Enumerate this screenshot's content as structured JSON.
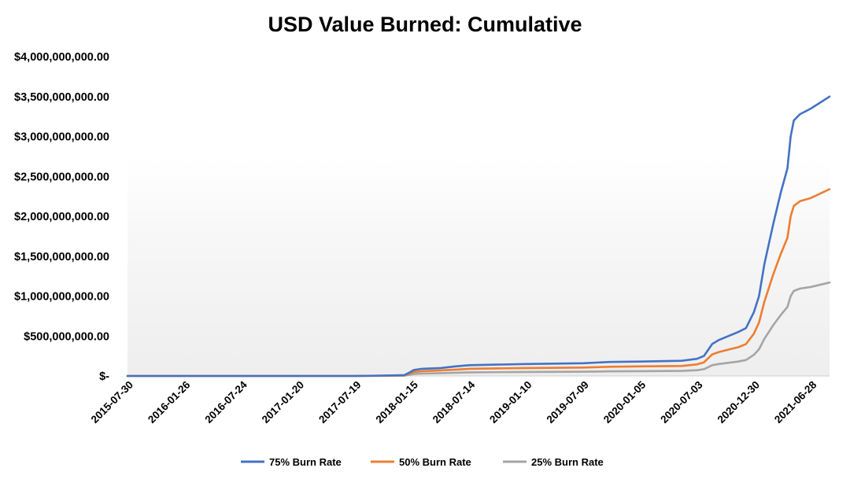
{
  "chart_data": {
    "type": "line",
    "title": "USD Value Burned: Cumulative",
    "xlabel": "",
    "ylabel": "",
    "ylim": [
      0,
      4000000000
    ],
    "y_ticks": [
      {
        "value": 0,
        "label": "$-"
      },
      {
        "value": 500000000,
        "label": "$500,000,000.00"
      },
      {
        "value": 1000000000,
        "label": "$1,000,000,000.00"
      },
      {
        "value": 1500000000,
        "label": "$1,500,000,000.00"
      },
      {
        "value": 2000000000,
        "label": "$2,000,000,000.00"
      },
      {
        "value": 2500000000,
        "label": "$2,500,000,000.00"
      },
      {
        "value": 3000000000,
        "label": "$3,000,000,000.00"
      },
      {
        "value": 3500000000,
        "label": "$3,500,000,000.00"
      },
      {
        "value": 4000000000,
        "label": "$4,000,000,000.00"
      }
    ],
    "xlim": [
      "2015-07-30",
      "2021-08-26"
    ],
    "x_ticks": [
      "2015-07-30",
      "2016-01-26",
      "2016-07-24",
      "2017-01-20",
      "2017-07-19",
      "2018-01-15",
      "2018-07-14",
      "2019-01-10",
      "2019-07-09",
      "2020-01-05",
      "2020-07-03",
      "2020-12-30",
      "2021-06-28"
    ],
    "grid": false,
    "legend_position": "bottom",
    "series": [
      {
        "name": "75% Burn Rate",
        "color": "#4472C4",
        "points": [
          [
            "2015-07-30",
            0
          ],
          [
            "2017-07-19",
            0
          ],
          [
            "2017-10-15",
            5000000
          ],
          [
            "2017-12-20",
            10000000
          ],
          [
            "2018-01-05",
            40000000
          ],
          [
            "2018-01-20",
            75000000
          ],
          [
            "2018-02-15",
            90000000
          ],
          [
            "2018-04-15",
            100000000
          ],
          [
            "2018-06-01",
            120000000
          ],
          [
            "2018-07-14",
            135000000
          ],
          [
            "2019-01-10",
            150000000
          ],
          [
            "2019-07-09",
            160000000
          ],
          [
            "2019-10-01",
            175000000
          ],
          [
            "2020-01-05",
            180000000
          ],
          [
            "2020-05-15",
            190000000
          ],
          [
            "2020-07-03",
            215000000
          ],
          [
            "2020-07-25",
            250000000
          ],
          [
            "2020-08-20",
            400000000
          ],
          [
            "2020-09-10",
            450000000
          ],
          [
            "2020-10-10",
            500000000
          ],
          [
            "2020-11-10",
            550000000
          ],
          [
            "2020-12-05",
            600000000
          ],
          [
            "2020-12-30",
            800000000
          ],
          [
            "2021-01-15",
            1000000000
          ],
          [
            "2021-02-01",
            1400000000
          ],
          [
            "2021-03-01",
            1900000000
          ],
          [
            "2021-03-25",
            2300000000
          ],
          [
            "2021-04-15",
            2600000000
          ],
          [
            "2021-04-25",
            3000000000
          ],
          [
            "2021-05-05",
            3200000000
          ],
          [
            "2021-05-25",
            3280000000
          ],
          [
            "2021-06-28",
            3350000000
          ],
          [
            "2021-08-26",
            3500000000
          ]
        ]
      },
      {
        "name": "50% Burn Rate",
        "color": "#ED7D31",
        "points": [
          [
            "2015-07-30",
            0
          ],
          [
            "2017-07-19",
            0
          ],
          [
            "2017-10-15",
            3000000
          ],
          [
            "2017-12-20",
            7000000
          ],
          [
            "2018-01-05",
            30000000
          ],
          [
            "2018-01-20",
            50000000
          ],
          [
            "2018-02-15",
            60000000
          ],
          [
            "2018-04-15",
            70000000
          ],
          [
            "2018-06-01",
            80000000
          ],
          [
            "2018-07-14",
            90000000
          ],
          [
            "2019-01-10",
            100000000
          ],
          [
            "2019-07-09",
            105000000
          ],
          [
            "2019-10-01",
            115000000
          ],
          [
            "2020-01-05",
            120000000
          ],
          [
            "2020-05-15",
            125000000
          ],
          [
            "2020-07-03",
            145000000
          ],
          [
            "2020-07-25",
            170000000
          ],
          [
            "2020-08-20",
            270000000
          ],
          [
            "2020-09-10",
            300000000
          ],
          [
            "2020-10-10",
            330000000
          ],
          [
            "2020-11-10",
            360000000
          ],
          [
            "2020-12-05",
            400000000
          ],
          [
            "2020-12-30",
            530000000
          ],
          [
            "2021-01-15",
            670000000
          ],
          [
            "2021-02-01",
            930000000
          ],
          [
            "2021-03-01",
            1270000000
          ],
          [
            "2021-03-25",
            1530000000
          ],
          [
            "2021-04-15",
            1730000000
          ],
          [
            "2021-04-25",
            2000000000
          ],
          [
            "2021-05-05",
            2130000000
          ],
          [
            "2021-05-25",
            2190000000
          ],
          [
            "2021-06-28",
            2230000000
          ],
          [
            "2021-08-26",
            2340000000
          ]
        ]
      },
      {
        "name": "25% Burn Rate",
        "color": "#A5A5A5",
        "points": [
          [
            "2015-07-30",
            0
          ],
          [
            "2017-07-19",
            0
          ],
          [
            "2017-10-15",
            2000000
          ],
          [
            "2017-12-20",
            3000000
          ],
          [
            "2018-01-05",
            15000000
          ],
          [
            "2018-01-20",
            25000000
          ],
          [
            "2018-02-15",
            30000000
          ],
          [
            "2018-04-15",
            35000000
          ],
          [
            "2018-06-01",
            40000000
          ],
          [
            "2018-07-14",
            45000000
          ],
          [
            "2019-01-10",
            50000000
          ],
          [
            "2019-07-09",
            53000000
          ],
          [
            "2019-10-01",
            58000000
          ],
          [
            "2020-01-05",
            60000000
          ],
          [
            "2020-05-15",
            63000000
          ],
          [
            "2020-07-03",
            72000000
          ],
          [
            "2020-07-25",
            85000000
          ],
          [
            "2020-08-20",
            135000000
          ],
          [
            "2020-09-10",
            150000000
          ],
          [
            "2020-10-10",
            165000000
          ],
          [
            "2020-11-10",
            180000000
          ],
          [
            "2020-12-05",
            200000000
          ],
          [
            "2020-12-30",
            265000000
          ],
          [
            "2021-01-15",
            335000000
          ],
          [
            "2021-02-01",
            465000000
          ],
          [
            "2021-03-01",
            635000000
          ],
          [
            "2021-03-25",
            765000000
          ],
          [
            "2021-04-15",
            865000000
          ],
          [
            "2021-04-25",
            1000000000
          ],
          [
            "2021-05-05",
            1065000000
          ],
          [
            "2021-05-25",
            1095000000
          ],
          [
            "2021-06-28",
            1115000000
          ],
          [
            "2021-08-26",
            1170000000
          ]
        ]
      }
    ]
  }
}
